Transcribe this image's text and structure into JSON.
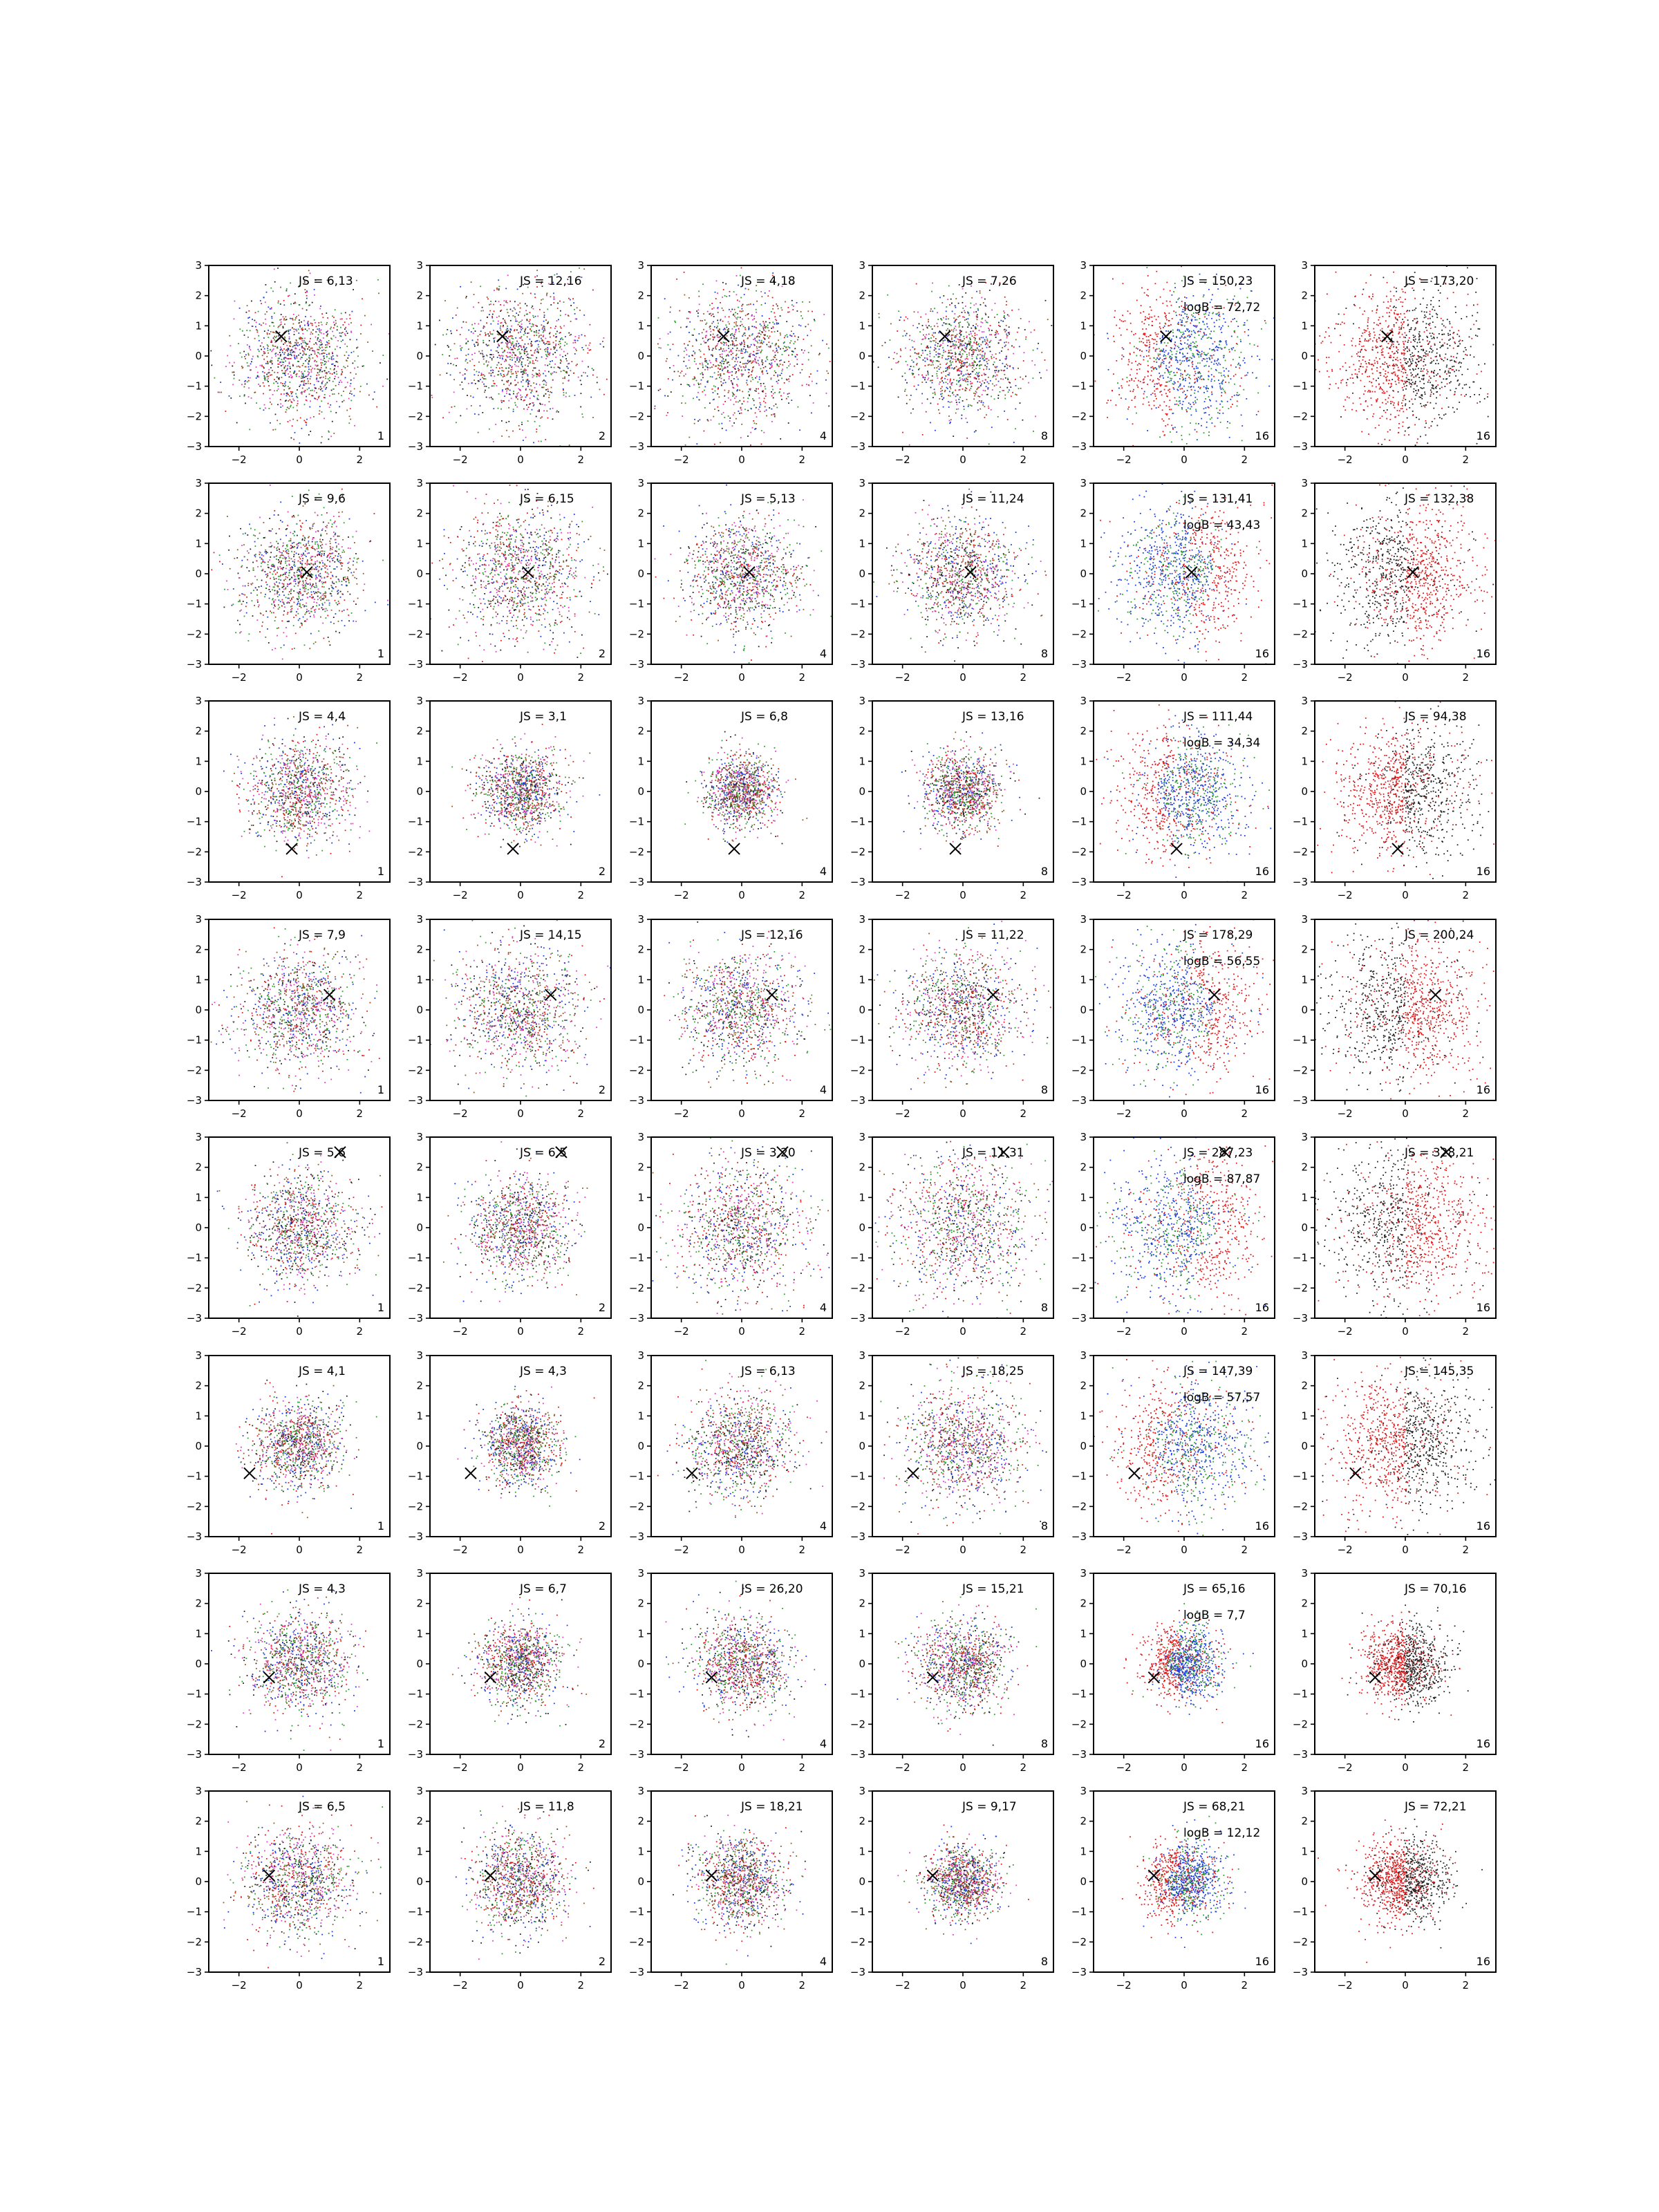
{
  "chart_data": {
    "type": "scatter",
    "grid": false,
    "xlim": [
      -3,
      3
    ],
    "ylim": [
      -3,
      3
    ],
    "xticks": [
      -2,
      0,
      2
    ],
    "yticks": [
      3,
      2,
      1,
      0,
      -1,
      -2,
      -3
    ],
    "colors": {
      "red": "#e41a1c",
      "green": "#2ca02c",
      "blue": "#1f3fe0",
      "brown": "#8c5a2b",
      "magenta": "#e040c0",
      "black": "#222222"
    },
    "rows": [
      {
        "marker": [
          -0.6,
          0.65
        ],
        "panels": [
          {
            "js": "JS = 6,13",
            "n": "1"
          },
          {
            "js": "JS = 12,16",
            "n": "2"
          },
          {
            "js": "JS = 4,18",
            "n": "4"
          },
          {
            "js": "JS = 7,26",
            "n": "8"
          },
          {
            "js": "JS = 150,23",
            "logb": "logB = 72,72",
            "n": "16"
          },
          {
            "js": "JS = 173,20",
            "n": "16"
          }
        ]
      },
      {
        "marker": [
          0.25,
          0.05
        ],
        "panels": [
          {
            "js": "JS = 9,6",
            "n": "1"
          },
          {
            "js": "JS = 6,15",
            "n": "2"
          },
          {
            "js": "JS = 5,13",
            "n": "4"
          },
          {
            "js": "JS = 11,24",
            "n": "8"
          },
          {
            "js": "JS = 131,41",
            "logb": "logB = 43,43",
            "n": "16"
          },
          {
            "js": "JS = 132,38",
            "n": "16"
          }
        ]
      },
      {
        "marker": [
          -0.25,
          -1.9
        ],
        "panels": [
          {
            "js": "JS = 4,4",
            "n": "1"
          },
          {
            "js": "JS = 3,1",
            "n": "2"
          },
          {
            "js": "JS = 6,8",
            "n": "4"
          },
          {
            "js": "JS = 13,16",
            "n": "8"
          },
          {
            "js": "JS = 111,44",
            "logb": "logB = 34,34",
            "n": "16"
          },
          {
            "js": "JS = 94,38",
            "n": "16"
          }
        ]
      },
      {
        "marker": [
          1.0,
          0.5
        ],
        "panels": [
          {
            "js": "JS = 7,9",
            "n": "1"
          },
          {
            "js": "JS = 14,15",
            "n": "2"
          },
          {
            "js": "JS = 12,16",
            "n": "4"
          },
          {
            "js": "JS = 11,22",
            "n": "8"
          },
          {
            "js": "JS = 178,29",
            "logb": "logB = 56,55",
            "n": "16"
          },
          {
            "js": "JS = 200,24",
            "n": "16"
          }
        ]
      },
      {
        "marker": [
          1.35,
          2.5
        ],
        "panels": [
          {
            "js": "JS = 5,6",
            "n": "1"
          },
          {
            "js": "JS = 6,5",
            "n": "2"
          },
          {
            "js": "JS = 3,20",
            "n": "4"
          },
          {
            "js": "JS = 11,31",
            "n": "8"
          },
          {
            "js": "JS = 287,23",
            "logb": "logB = 87,87",
            "n": "16"
          },
          {
            "js": "JS = 328,21",
            "n": "16"
          }
        ]
      },
      {
        "marker": [
          -1.65,
          -0.9
        ],
        "panels": [
          {
            "js": "JS = 4,1",
            "n": "1"
          },
          {
            "js": "JS = 4,3",
            "n": "2"
          },
          {
            "js": "JS = 6,13",
            "n": "4"
          },
          {
            "js": "JS = 18,25",
            "n": "8"
          },
          {
            "js": "JS = 147,39",
            "logb": "logB = 57,57",
            "n": "16"
          },
          {
            "js": "JS = 145,35",
            "n": "16"
          }
        ]
      },
      {
        "marker": [
          -1.0,
          -0.45
        ],
        "panels": [
          {
            "js": "JS = 4,3",
            "n": "1"
          },
          {
            "js": "JS = 6,7",
            "n": "2"
          },
          {
            "js": "JS = 26,20",
            "n": "4"
          },
          {
            "js": "JS = 15,21",
            "n": "8"
          },
          {
            "js": "JS = 65,16",
            "logb": "logB = 7,7",
            "n": "16"
          },
          {
            "js": "JS = 70,16",
            "n": "16"
          }
        ]
      },
      {
        "marker": [
          -1.0,
          0.2
        ],
        "panels": [
          {
            "js": "JS = 6,5",
            "n": "1"
          },
          {
            "js": "JS = 11,8",
            "n": "2"
          },
          {
            "js": "JS = 18,21",
            "n": "4"
          },
          {
            "js": "JS = 9,17",
            "n": "8"
          },
          {
            "js": "JS = 68,21",
            "logb": "logB = 12,12",
            "n": "16"
          },
          {
            "js": "JS = 72,21",
            "n": "16"
          }
        ]
      }
    ]
  }
}
